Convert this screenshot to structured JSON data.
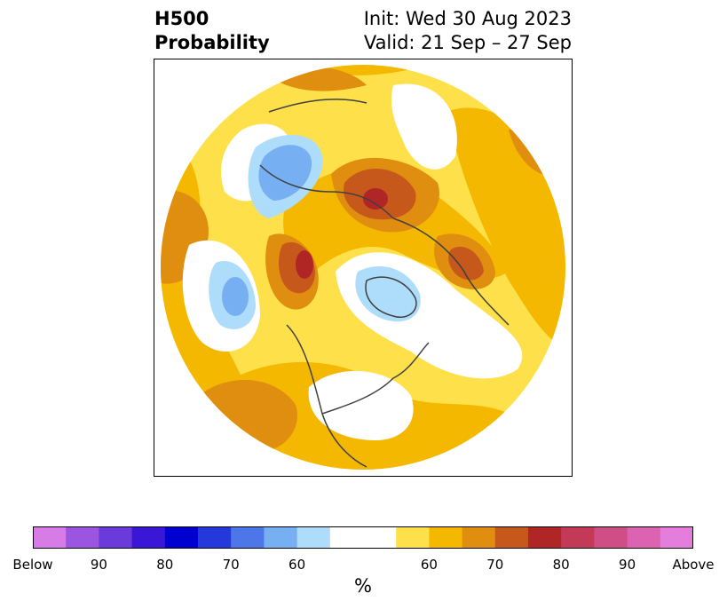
{
  "header": {
    "variable": "H500",
    "product": "Probability",
    "init": "Init: Wed 30 Aug 2023",
    "valid": "Valid: 21 Sep – 27 Sep"
  },
  "colorbar": {
    "colors": [
      "#d77be6",
      "#9c55e0",
      "#6a3adb",
      "#3a17d6",
      "#0000d1",
      "#2438db",
      "#4d76e8",
      "#76b0f2",
      "#aedcfb",
      "#ffffff",
      "#ffffff",
      "#fee14a",
      "#f5b800",
      "#e08e0f",
      "#c6581b",
      "#b02525",
      "#c23a57",
      "#cf4e85",
      "#dc62b2",
      "#e57ddd"
    ],
    "labels": [
      "Below",
      "90",
      "80",
      "70",
      "60",
      "60",
      "70",
      "80",
      "90",
      "Above"
    ],
    "units": "%"
  },
  "map": {
    "palette": {
      "background": "#ffffff",
      "yellow": "#fee14a",
      "gold": "#f5b800",
      "orange": "#e08e0f",
      "dark_orange": "#c6581b",
      "red": "#b02525",
      "light_blue": "#aedcfb",
      "mid_blue": "#76b0f2",
      "blue": "#4d76e8",
      "coastline": "#404040"
    }
  }
}
